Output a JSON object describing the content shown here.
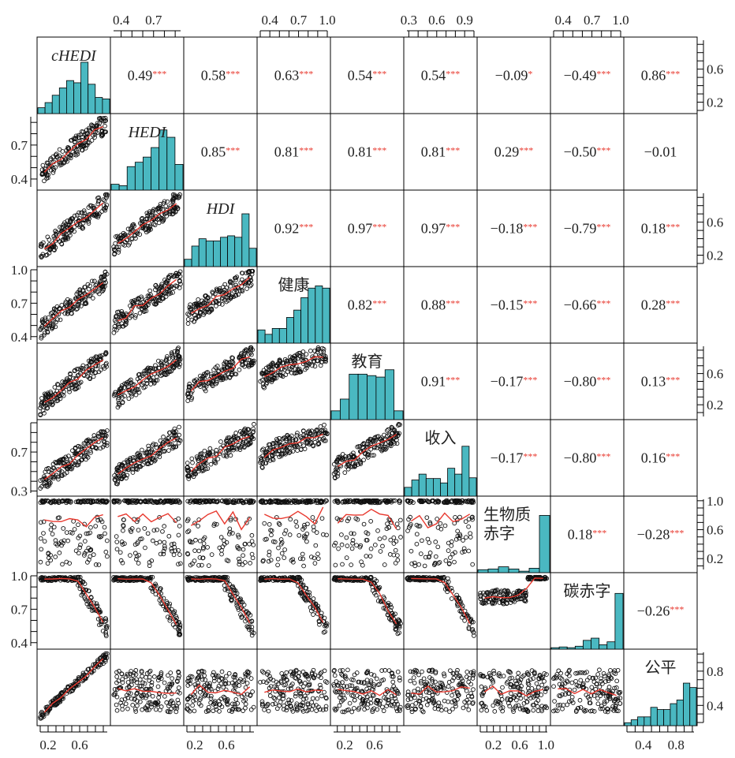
{
  "chart_data": {
    "type": "scatter-matrix",
    "variables": [
      {
        "key": "cHEDI",
        "label": "cHEDI",
        "italic": true
      },
      {
        "key": "HEDI",
        "label": "HEDI",
        "italic": true
      },
      {
        "key": "HDI",
        "label": "HDI",
        "italic": true
      },
      {
        "key": "health",
        "label": "健康",
        "italic": false
      },
      {
        "key": "education",
        "label": "教育",
        "italic": false
      },
      {
        "key": "income",
        "label": "收入",
        "italic": false
      },
      {
        "key": "biodeficit",
        "label": "生物质\n赤字",
        "italic": false
      },
      {
        "key": "carbondeficit",
        "label": "碳赤字",
        "italic": false
      },
      {
        "key": "equity",
        "label": "公平",
        "italic": false
      }
    ],
    "correlations": [
      {
        "row": 0,
        "col": 1,
        "value": "0.49",
        "stars": "***"
      },
      {
        "row": 0,
        "col": 2,
        "value": "0.58",
        "stars": "***"
      },
      {
        "row": 0,
        "col": 3,
        "value": "0.63",
        "stars": "***"
      },
      {
        "row": 0,
        "col": 4,
        "value": "0.54",
        "stars": "***"
      },
      {
        "row": 0,
        "col": 5,
        "value": "0.54",
        "stars": "***"
      },
      {
        "row": 0,
        "col": 6,
        "value": "−0.09",
        "stars": "*"
      },
      {
        "row": 0,
        "col": 7,
        "value": "−0.49",
        "stars": "***"
      },
      {
        "row": 0,
        "col": 8,
        "value": "0.86",
        "stars": "***"
      },
      {
        "row": 1,
        "col": 2,
        "value": "0.85",
        "stars": "***"
      },
      {
        "row": 1,
        "col": 3,
        "value": "0.81",
        "stars": "***"
      },
      {
        "row": 1,
        "col": 4,
        "value": "0.81",
        "stars": "***"
      },
      {
        "row": 1,
        "col": 5,
        "value": "0.81",
        "stars": "***"
      },
      {
        "row": 1,
        "col": 6,
        "value": "0.29",
        "stars": "***"
      },
      {
        "row": 1,
        "col": 7,
        "value": "−0.50",
        "stars": "***"
      },
      {
        "row": 1,
        "col": 8,
        "value": "−0.01",
        "stars": ""
      },
      {
        "row": 2,
        "col": 3,
        "value": "0.92",
        "stars": "***"
      },
      {
        "row": 2,
        "col": 4,
        "value": "0.97",
        "stars": "***"
      },
      {
        "row": 2,
        "col": 5,
        "value": "0.97",
        "stars": "***"
      },
      {
        "row": 2,
        "col": 6,
        "value": "−0.18",
        "stars": "***"
      },
      {
        "row": 2,
        "col": 7,
        "value": "−0.79",
        "stars": "***"
      },
      {
        "row": 2,
        "col": 8,
        "value": "0.18",
        "stars": "***"
      },
      {
        "row": 3,
        "col": 4,
        "value": "0.82",
        "stars": "***"
      },
      {
        "row": 3,
        "col": 5,
        "value": "0.88",
        "stars": "***"
      },
      {
        "row": 3,
        "col": 6,
        "value": "−0.15",
        "stars": "***"
      },
      {
        "row": 3,
        "col": 7,
        "value": "−0.66",
        "stars": "***"
      },
      {
        "row": 3,
        "col": 8,
        "value": "0.28",
        "stars": "***"
      },
      {
        "row": 4,
        "col": 5,
        "value": "0.91",
        "stars": "***"
      },
      {
        "row": 4,
        "col": 6,
        "value": "−0.17",
        "stars": "***"
      },
      {
        "row": 4,
        "col": 7,
        "value": "−0.80",
        "stars": "***"
      },
      {
        "row": 4,
        "col": 8,
        "value": "0.13",
        "stars": "***"
      },
      {
        "row": 5,
        "col": 6,
        "value": "−0.17",
        "stars": "***"
      },
      {
        "row": 5,
        "col": 7,
        "value": "−0.80",
        "stars": "***"
      },
      {
        "row": 5,
        "col": 8,
        "value": "0.16",
        "stars": "***"
      },
      {
        "row": 6,
        "col": 7,
        "value": "0.18",
        "stars": "***"
      },
      {
        "row": 6,
        "col": 8,
        "value": "−0.28",
        "stars": "***"
      },
      {
        "row": 7,
        "col": 8,
        "value": "−0.26",
        "stars": "***"
      }
    ],
    "histograms": [
      [
        0.08,
        0.15,
        0.25,
        0.35,
        0.45,
        0.42,
        0.7,
        0.4,
        0.22,
        0.2
      ],
      [
        0.08,
        0.06,
        0.32,
        0.38,
        0.45,
        0.58,
        0.82,
        0.72,
        0.35
      ],
      [
        0.1,
        0.28,
        0.38,
        0.35,
        0.35,
        0.4,
        0.42,
        0.4,
        0.72,
        0.25
      ],
      [
        0.18,
        0.12,
        0.2,
        0.2,
        0.35,
        0.45,
        0.62,
        0.75,
        0.78,
        0.75
      ],
      [
        0.12,
        0.28,
        0.62,
        0.62,
        0.6,
        0.58,
        0.68,
        0.12
      ],
      [
        0.12,
        0.22,
        0.3,
        0.24,
        0.24,
        0.18,
        0.38,
        0.3,
        0.68,
        0.25
      ],
      [
        0.04,
        0.05,
        0.08,
        0.05,
        0.02,
        0.06,
        0.78
      ],
      [
        0.02,
        0.03,
        0.02,
        0.04,
        0.12,
        0.15,
        0.06,
        0.1,
        0.76
      ],
      [
        0.04,
        0.08,
        0.12,
        0.12,
        0.25,
        0.22,
        0.22,
        0.3,
        0.35,
        0.58,
        0.52
      ]
    ],
    "axis_ticks": {
      "top": [
        {
          "col": 1,
          "labels": [
            "0.4",
            "0.7"
          ],
          "values": [
            0.4,
            0.7
          ],
          "range": [
            0.33,
            0.95
          ]
        },
        {
          "col": 3,
          "labels": [
            "0.4",
            "0.7",
            "1.0"
          ],
          "values": [
            0.4,
            0.7,
            1.0
          ],
          "range": [
            0.3,
            1.0
          ]
        },
        {
          "col": 5,
          "labels": [
            "0.3",
            "0.6",
            "0.9"
          ],
          "values": [
            0.3,
            0.6,
            0.9
          ],
          "range": [
            0.28,
            1.0
          ]
        },
        {
          "col": 7,
          "labels": [
            "0.4",
            "0.7",
            "1.0"
          ],
          "values": [
            0.4,
            0.7,
            1.0
          ],
          "range": [
            0.3,
            1.0
          ]
        }
      ],
      "bottom": [
        {
          "col": 0,
          "labels": [
            "0.2",
            "0.6"
          ],
          "values": [
            0.2,
            0.6
          ],
          "range": [
            0.1,
            0.95
          ]
        },
        {
          "col": 2,
          "labels": [
            "0.2",
            "0.6"
          ],
          "values": [
            0.2,
            0.6
          ],
          "range": [
            0.1,
            0.95
          ]
        },
        {
          "col": 4,
          "labels": [
            "0.2",
            "0.6"
          ],
          "values": [
            0.2,
            0.6
          ],
          "range": [
            0.05,
            0.95
          ]
        },
        {
          "col": 6,
          "labels": [
            "0.2",
            "0.6",
            "1.0"
          ],
          "values": [
            0.2,
            0.6,
            1.0
          ],
          "range": [
            0.0,
            1.02
          ]
        },
        {
          "col": 8,
          "labels": [
            "0.4",
            "0.8"
          ],
          "values": [
            0.4,
            0.8
          ],
          "range": [
            0.2,
            1.02
          ]
        }
      ],
      "left": [
        {
          "row": 1,
          "labels": [
            "0.7",
            "0.4"
          ],
          "values": [
            0.7,
            0.4
          ],
          "range": [
            0.33,
            0.95
          ]
        },
        {
          "row": 3,
          "labels": [
            "1.0",
            "0.7",
            "0.4"
          ],
          "values": [
            1.0,
            0.7,
            0.4
          ],
          "range": [
            0.37,
            1.0
          ]
        },
        {
          "row": 5,
          "labels": [
            "0.7",
            "0.3"
          ],
          "values": [
            0.7,
            0.3
          ],
          "range": [
            0.28,
            1.0
          ]
        },
        {
          "row": 7,
          "labels": [
            "1.0",
            "0.7",
            "0.4"
          ],
          "values": [
            1.0,
            0.7,
            0.4
          ],
          "range": [
            0.37,
            1.0
          ]
        }
      ],
      "right": [
        {
          "row": 0,
          "labels": [
            "0.6",
            "0.2"
          ],
          "values": [
            0.6,
            0.2
          ],
          "range": [
            0.1,
            0.95
          ]
        },
        {
          "row": 2,
          "labels": [
            "0.6",
            "0.2"
          ],
          "values": [
            0.6,
            0.2
          ],
          "range": [
            0.1,
            0.95
          ]
        },
        {
          "row": 4,
          "labels": [
            "0.6",
            "0.2"
          ],
          "values": [
            0.6,
            0.2
          ],
          "range": [
            0.05,
            0.95
          ]
        },
        {
          "row": 6,
          "labels": [
            "1.0",
            "0.6",
            "0.2"
          ],
          "values": [
            1.0,
            0.6,
            0.2
          ],
          "range": [
            0.05,
            1.02
          ]
        },
        {
          "row": 8,
          "labels": [
            "0.8",
            "0.4"
          ],
          "values": [
            0.8,
            0.4
          ],
          "range": [
            0.2,
            1.02
          ]
        }
      ]
    },
    "colors": {
      "histogram_fill": "#4ab8c1",
      "points": "#111111",
      "smooth_line": "#e8392f",
      "stars": "#e8392f",
      "frame": "#000000"
    },
    "grid": false
  }
}
